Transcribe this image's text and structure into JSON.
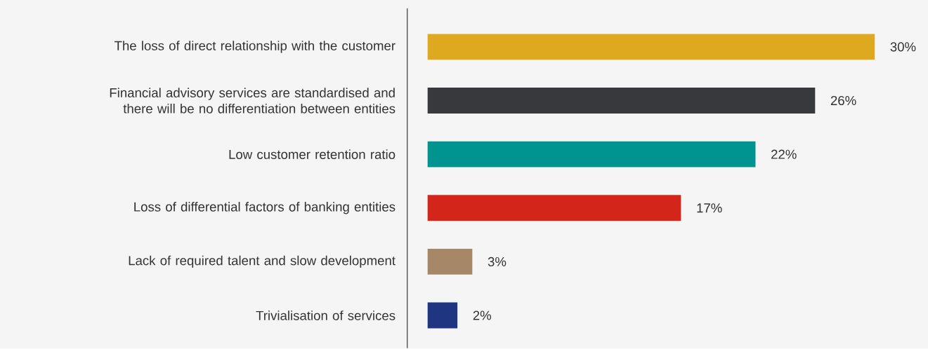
{
  "chart_data": {
    "type": "bar",
    "orientation": "horizontal",
    "data_labels": true,
    "tick_labels": "y",
    "categories": [
      "The loss of direct relationship with the customer",
      "Financial advisory services are standardised and there will be no differentiation between entities",
      "Low customer retention ratio",
      "Loss of differential factors of banking entities",
      "Lack of required talent and slow development",
      "Trivialisation of services"
    ],
    "values": [
      30,
      26,
      22,
      17,
      3,
      2
    ],
    "value_labels": [
      "30%",
      "26%",
      "22%",
      "17%",
      "3%",
      "2%"
    ],
    "colors": [
      "#dea81f",
      "#38393c",
      "#009490",
      "#d4251a",
      "#a68868",
      "#1f3582"
    ]
  }
}
